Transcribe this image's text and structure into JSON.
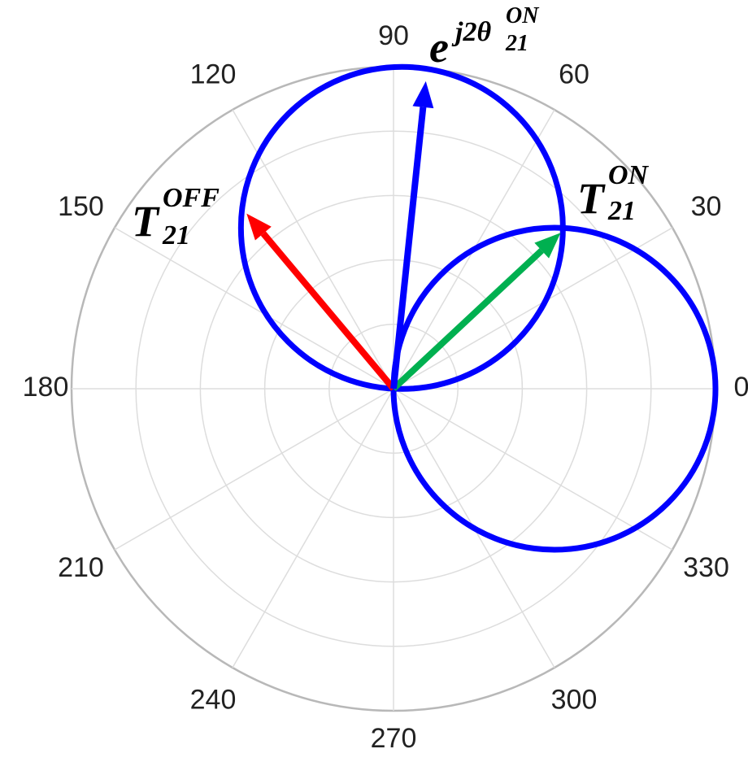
{
  "chart_data": {
    "type": "polar",
    "rlim": [
      0,
      1
    ],
    "rticks": [
      0.2,
      0.4,
      0.6,
      0.8,
      1
    ],
    "thetaticks": [
      0,
      30,
      60,
      90,
      120,
      150,
      180,
      210,
      240,
      270,
      300,
      330
    ],
    "grid": true,
    "circles": [
      {
        "center_theta": 0,
        "center_r": 0.5,
        "radius": 0.5,
        "color": "#0000ff"
      },
      {
        "center_theta": 87,
        "center_r": 0.5,
        "radius": 0.5,
        "color": "#0000ff"
      }
    ],
    "series": [
      {
        "name": "T21 ON",
        "theta": 43,
        "r": 0.71,
        "color": "#00b050",
        "label": {
          "base": "T",
          "sub": "21",
          "sup": "ON"
        }
      },
      {
        "name": "T21 OFF",
        "theta": 130,
        "r": 0.71,
        "color": "#ff0000",
        "label": {
          "base": "T",
          "sub": "21",
          "sup": "OFF"
        }
      },
      {
        "name": "e j2theta",
        "theta": 84,
        "r": 0.96,
        "color": "#0000ff",
        "label": {
          "base": "e",
          "sup": "j2θ",
          "sup_sub": "21",
          "sup_sup": "ON"
        }
      }
    ]
  }
}
